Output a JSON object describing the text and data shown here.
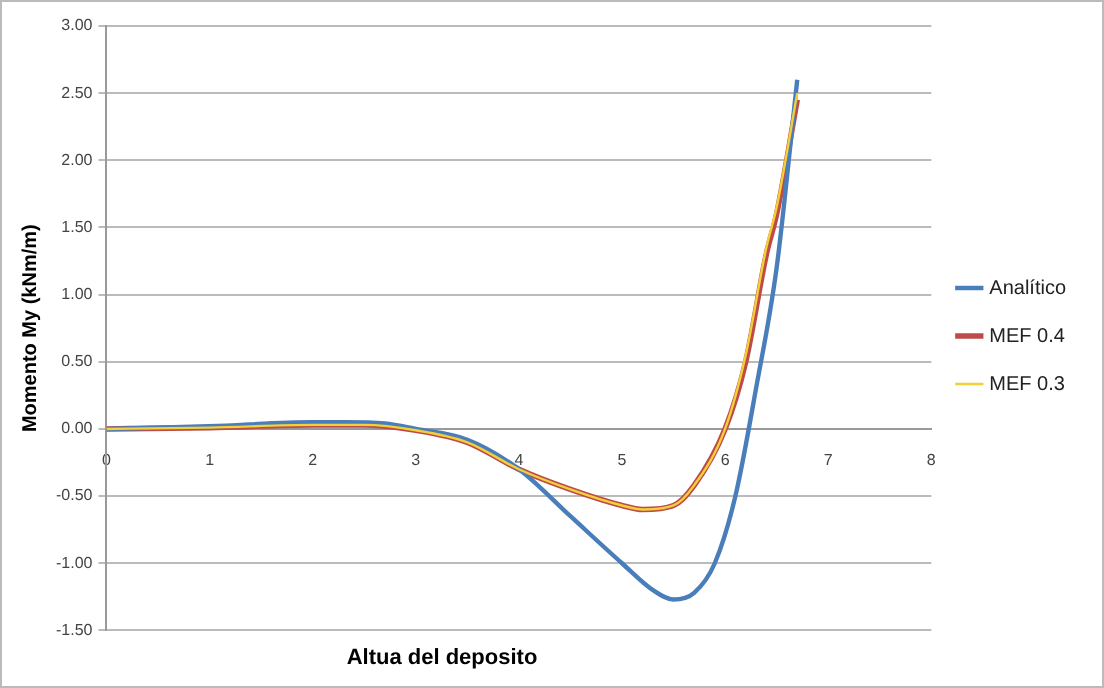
{
  "chart_data": {
    "type": "line",
    "xlabel": "Altua del deposito",
    "ylabel": "Momento My (kNm/m)",
    "xlim": [
      0,
      8
    ],
    "xticks": [
      0,
      1,
      2,
      3,
      4,
      5,
      6,
      7,
      8
    ],
    "ylim": [
      -1.5,
      3
    ],
    "yticks": [
      {
        "value": -1.5,
        "label": "-1.50"
      },
      {
        "value": -1,
        "label": "-1.00"
      },
      {
        "value": -0.5,
        "label": "-0.50"
      },
      {
        "value": 0,
        "label": "0.00"
      },
      {
        "value": 0.5,
        "label": "0.50"
      },
      {
        "value": 1,
        "label": "1.00"
      },
      {
        "value": 1.5,
        "label": "1.50"
      },
      {
        "value": 2,
        "label": "2.00"
      },
      {
        "value": 2.5,
        "label": "2.50"
      },
      {
        "value": 3,
        "label": "3.00"
      }
    ],
    "grid": "y",
    "legend": "right",
    "marker": "none",
    "line_style": "solid",
    "series": [
      {
        "name": "Analítico",
        "color": "#4a7ebb",
        "x": [
          0,
          1,
          2,
          2.3,
          2.7,
          3,
          3.5,
          4,
          4.5,
          5,
          5.3,
          5.5,
          5.7,
          5.9,
          6.1,
          6.3,
          6.5,
          6.7
        ],
        "values": [
          0,
          0.02,
          0.05,
          0.05,
          0.04,
          0,
          -0.08,
          -0.3,
          -0.65,
          -1,
          -1.2,
          -1.27,
          -1.22,
          -1,
          -0.5,
          0.3,
          1.2,
          2.6
        ]
      },
      {
        "name": "MEF 0.4",
        "color": "#be4b48",
        "x": [
          0,
          1,
          2,
          2.5,
          3,
          3.5,
          4,
          4.5,
          5,
          5.2,
          5.5,
          5.7,
          6,
          6.2,
          6.4,
          6.5,
          6.7
        ],
        "values": [
          0,
          0.01,
          0.03,
          0.03,
          -0.01,
          -0.1,
          -0.3,
          -0.45,
          -0.57,
          -0.6,
          -0.57,
          -0.42,
          0,
          0.5,
          1.3,
          1.6,
          2.45
        ]
      },
      {
        "name": "MEF 0.3",
        "color": "#f2d03a",
        "x": [
          0,
          1,
          2,
          2.5,
          3,
          3.5,
          4,
          4.5,
          5,
          5.2,
          5.5,
          5.7,
          6,
          6.2,
          6.4,
          6.5,
          6.7
        ],
        "values": [
          0,
          0.01,
          0.03,
          0.03,
          -0.01,
          -0.1,
          -0.3,
          -0.45,
          -0.57,
          -0.6,
          -0.57,
          -0.42,
          0,
          0.55,
          1.35,
          1.65,
          2.5
        ]
      }
    ]
  }
}
